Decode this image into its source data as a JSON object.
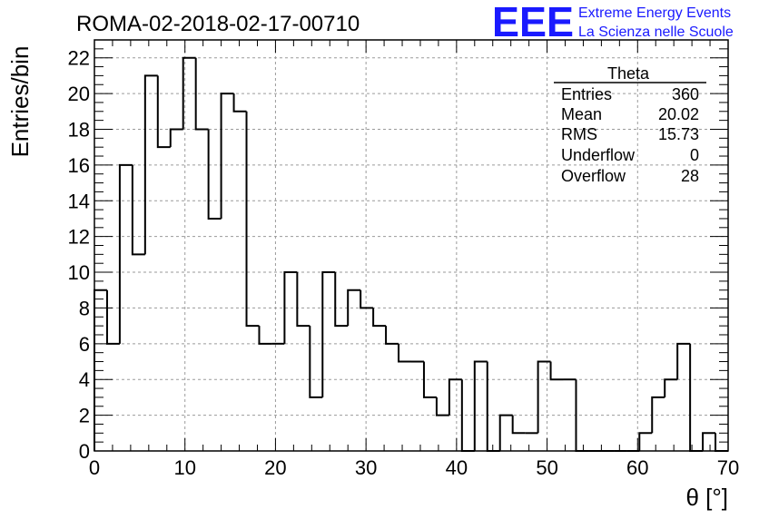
{
  "chart_data": {
    "type": "bar",
    "title": "ROMA-02-2018-02-17-00710",
    "xlabel": "θ [°]",
    "ylabel": "Entries/bin",
    "xlim": [
      0,
      70
    ],
    "ylim": [
      0,
      23
    ],
    "grid": true,
    "bin_width": 1.4,
    "bin_edges_start": 0,
    "values": [
      9,
      6,
      16,
      11,
      21,
      17,
      18,
      22,
      18,
      13,
      20,
      19,
      7,
      6,
      6,
      10,
      7,
      3,
      10,
      7,
      9,
      8,
      7,
      6,
      5,
      5,
      3,
      2,
      4,
      0,
      5,
      0,
      2,
      1,
      1,
      5,
      4,
      4,
      0,
      0,
      0,
      0,
      0,
      1,
      3,
      4,
      6,
      0,
      1,
      0
    ],
    "x_ticks": [
      "0",
      "10",
      "20",
      "30",
      "40",
      "50",
      "60",
      "70"
    ],
    "y_ticks": [
      "0",
      "2",
      "4",
      "6",
      "8",
      "10",
      "12",
      "14",
      "16",
      "18",
      "20",
      "22"
    ],
    "stats_box": {
      "name": "Theta",
      "rows": [
        {
          "label": "Entries",
          "value": "360"
        },
        {
          "label": "Mean",
          "value": "20.02"
        },
        {
          "label": "RMS",
          "value": "15.73"
        },
        {
          "label": "Underflow",
          "value": "0"
        },
        {
          "label": "Overflow",
          "value": "28"
        }
      ]
    }
  },
  "logo": {
    "mark": "EEE",
    "line1": "Extreme Energy Events",
    "line2": "La Scienza nelle Scuole",
    "color": "#1a1aff"
  }
}
